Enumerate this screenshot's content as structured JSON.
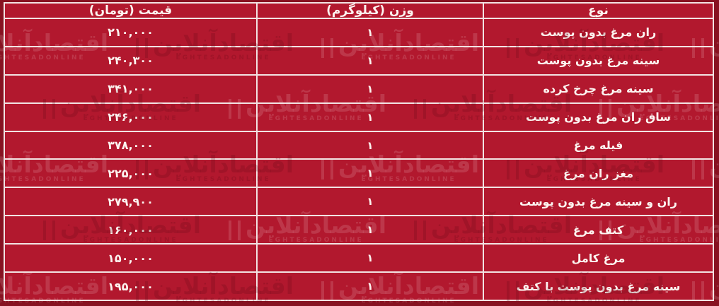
{
  "table": {
    "headers": {
      "type": "نوع",
      "weight": "وزن (کیلوگرم)",
      "price": "قیمت (تومان)"
    },
    "rows": [
      {
        "type": "ران مرغ بدون پوست",
        "weight": "۱",
        "price": "۲۱۰,۰۰۰"
      },
      {
        "type": "سینه مرغ بدون پوست",
        "weight": "۱",
        "price": "۲۴۰,۳۰۰"
      },
      {
        "type": "سینه مرغ چرخ کرده",
        "weight": "۱",
        "price": "۳۴۱,۰۰۰"
      },
      {
        "type": "ساق ران مرغ بدون پوست",
        "weight": "۱",
        "price": "۲۴۶,۰۰۰"
      },
      {
        "type": "فیله مرغ",
        "weight": "۱",
        "price": "۳۷۸,۰۰۰"
      },
      {
        "type": "مغز ران مرغ",
        "weight": "۱",
        "price": "۲۲۵,۰۰۰"
      },
      {
        "type": "ران و سینه مرغ بدون پوست",
        "weight": "۱",
        "price": "۲۷۹,۹۰۰"
      },
      {
        "type": "کتف مرغ",
        "weight": "۱",
        "price": "۱۶۰,۰۰۰"
      },
      {
        "type": "مرغ کامل",
        "weight": "۱",
        "price": "۱۵۰,۰۰۰"
      },
      {
        "type": "سینه مرغ بدون پوست با کتف",
        "weight": "۱",
        "price": "۱۹۵,۰۰۰"
      }
    ]
  },
  "watermark": {
    "text_fa": "اقتصادآنلاین",
    "text_en": "EGHTESADONLINE"
  },
  "colors": {
    "table_background": "#B2182E",
    "edge_background": "#871221",
    "border": "#F2E3E3",
    "text": "#FCF4F0"
  },
  "chart_data": {
    "type": "table",
    "title": "قیمت انواع مرغ",
    "columns": [
      "نوع",
      "وزن (کیلوگرم)",
      "قیمت (تومان)"
    ],
    "rows": [
      [
        "ران مرغ بدون پوست",
        "۱",
        "۲۱۰,۰۰۰"
      ],
      [
        "سینه مرغ بدون پوست",
        "۱",
        "۲۴۰,۳۰۰"
      ],
      [
        "سینه مرغ چرخ کرده",
        "۱",
        "۳۴۱,۰۰۰"
      ],
      [
        "ساق ران مرغ بدون پوست",
        "۱",
        "۲۴۶,۰۰۰"
      ],
      [
        "فیله مرغ",
        "۱",
        "۳۷۸,۰۰۰"
      ],
      [
        "مغز ران مرغ",
        "۱",
        "۲۲۵,۰۰۰"
      ],
      [
        "ران و سینه مرغ بدون پوست",
        "۱",
        "۲۷۹,۹۰۰"
      ],
      [
        "کتف مرغ",
        "۱",
        "۱۶۰,۰۰۰"
      ],
      [
        "مرغ کامل",
        "۱",
        "۱۵۰,۰۰۰"
      ],
      [
        "سینه مرغ بدون پوست با کتف",
        "۱",
        "۱۹۵,۰۰۰"
      ]
    ],
    "weights_kg": [
      1,
      1,
      1,
      1,
      1,
      1,
      1,
      1,
      1,
      1
    ],
    "prices_toman": [
      210000,
      240300,
      341000,
      246000,
      378000,
      225000,
      279900,
      160000,
      150000,
      195000
    ]
  }
}
